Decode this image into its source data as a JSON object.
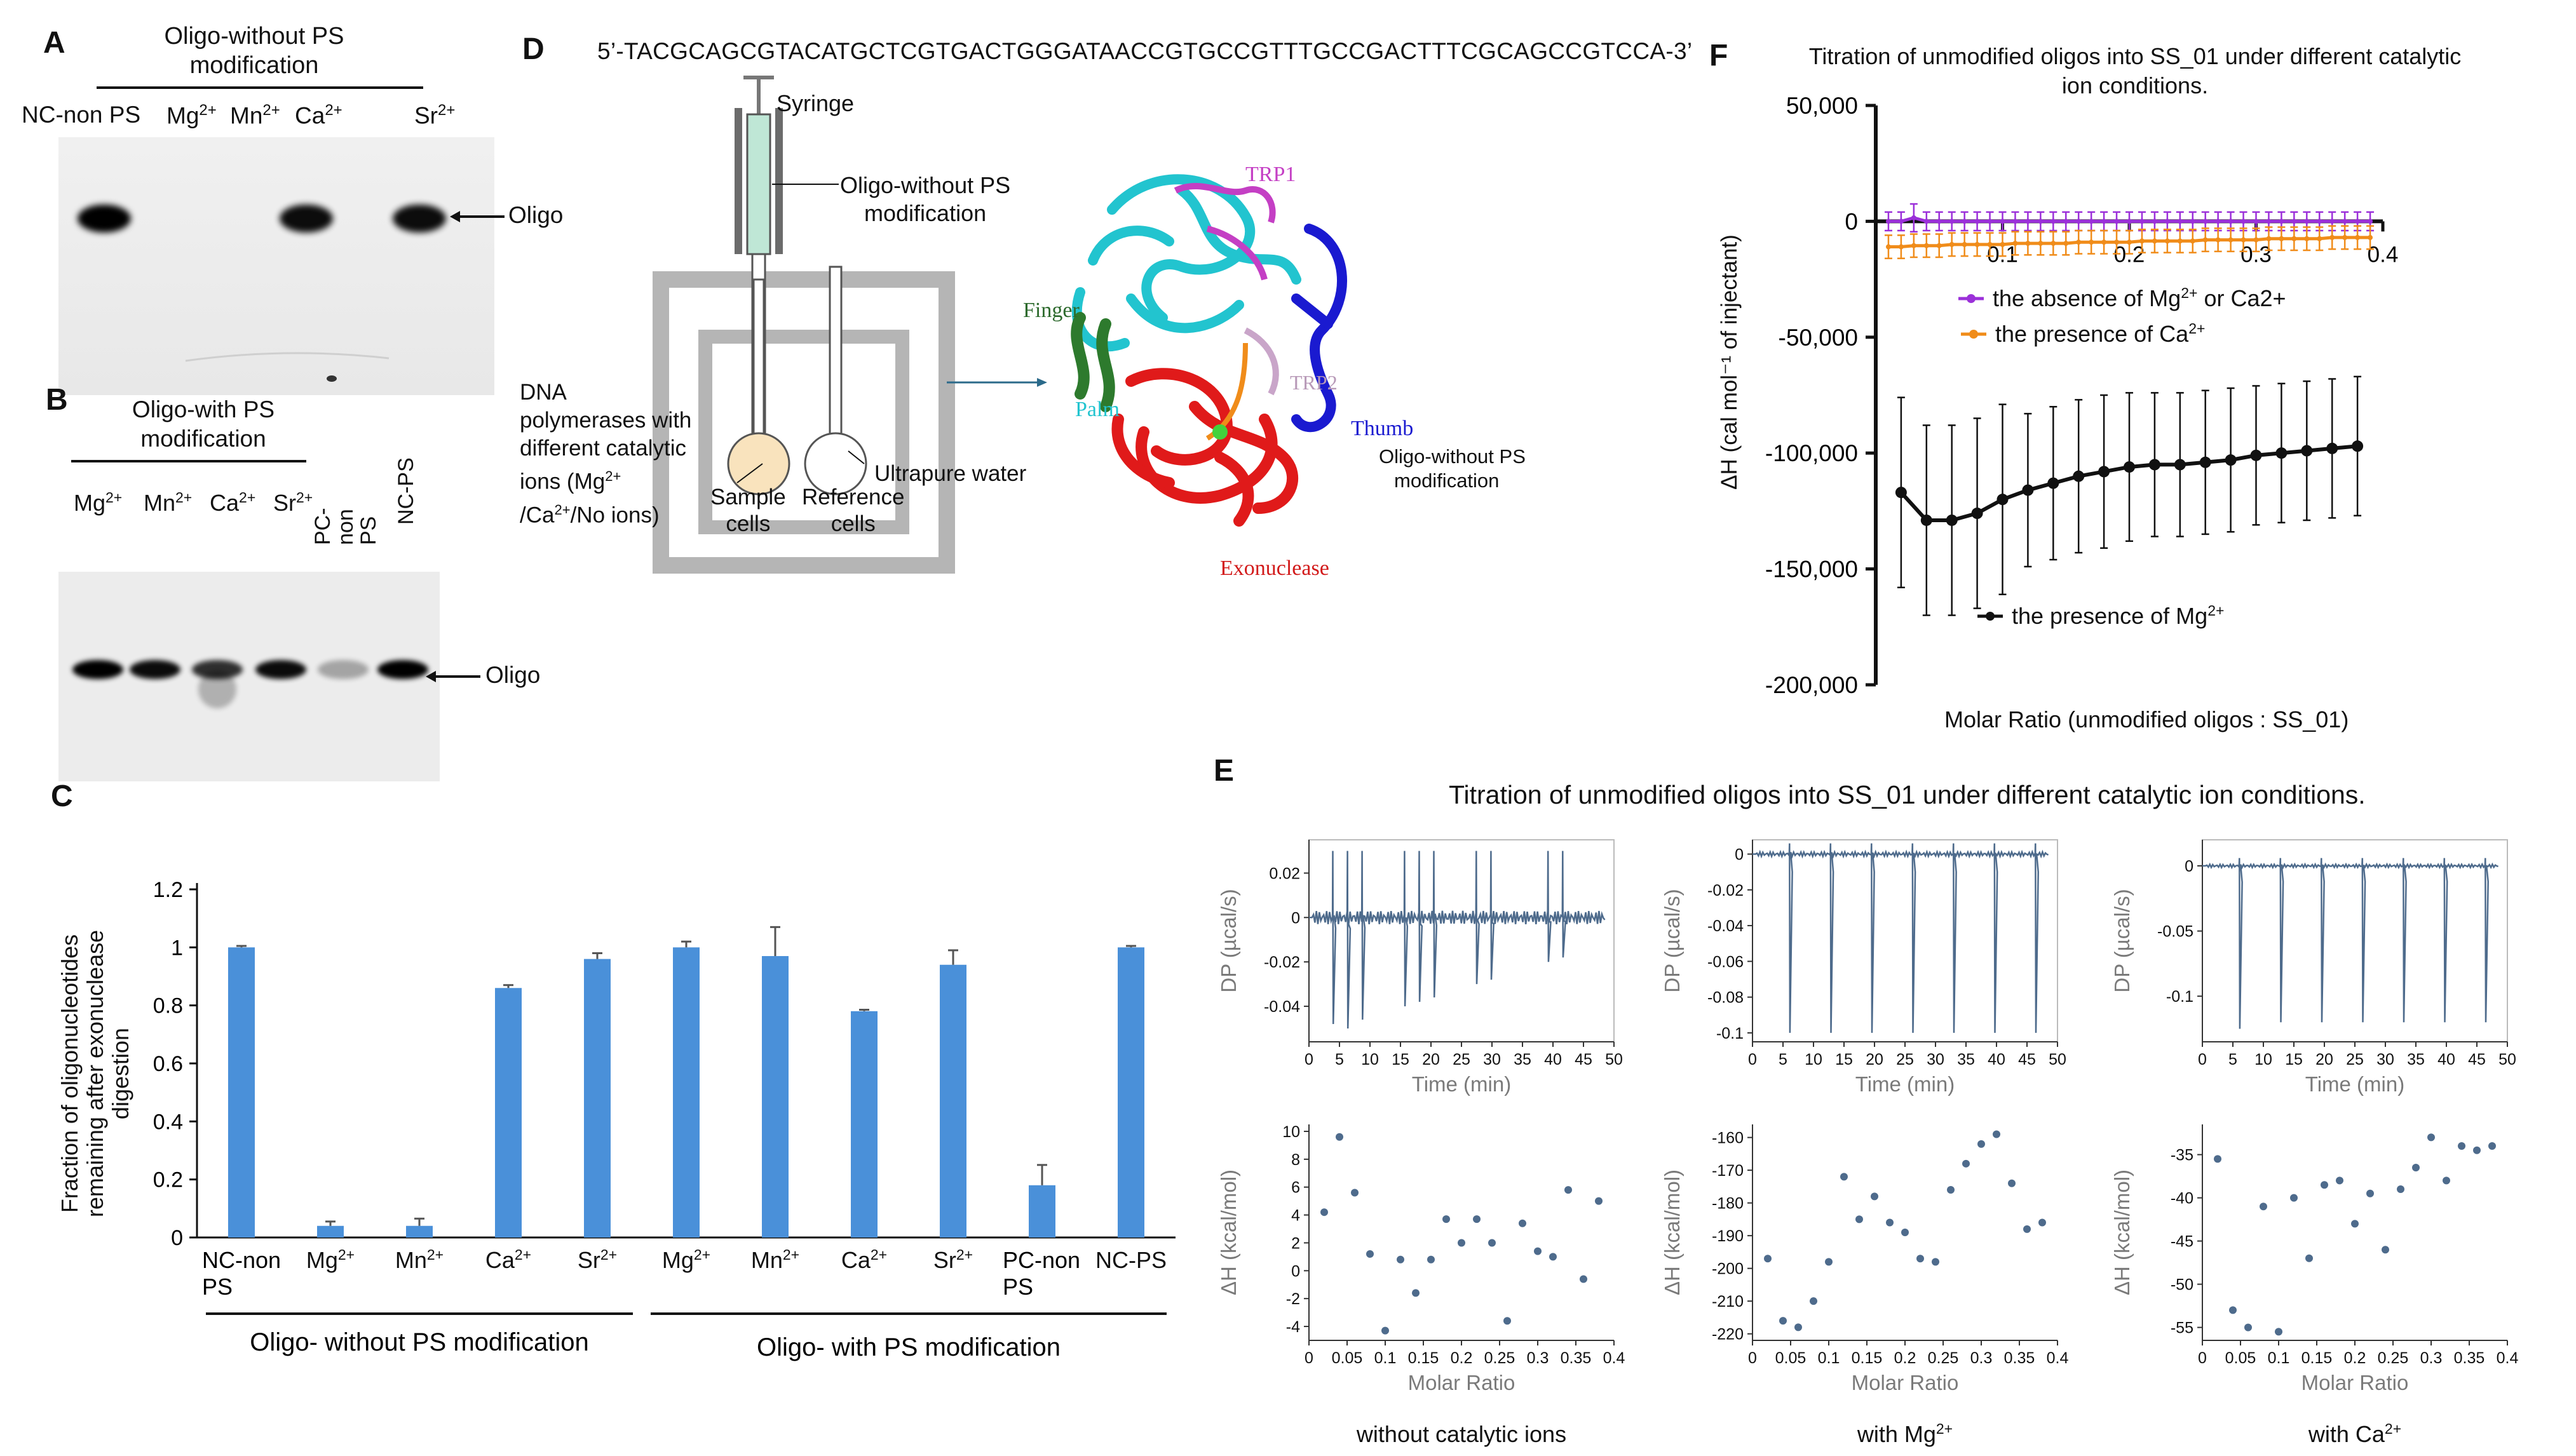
{
  "panelA": {
    "letter": "A",
    "group_title_line1": "Oligo-without PS",
    "group_title_line2": "modification",
    "lanes": [
      "NC-non PS",
      "Mg2+",
      "Mn2+",
      "Ca2+",
      "Sr2+"
    ],
    "arrow_label": "Oligo",
    "band_intensity": [
      1.0,
      0.0,
      0.0,
      0.95,
      0.95
    ]
  },
  "panelB": {
    "letter": "B",
    "group_title_line1": "Oligo-with PS",
    "group_title_line2": "modification",
    "lanes": [
      "Mg2+",
      "Mn2+",
      "Ca2+",
      "Sr2+",
      "PC-non PS",
      "NC-PS"
    ],
    "arrow_label": "Oligo",
    "band_intensity": [
      1.0,
      0.95,
      0.8,
      0.95,
      0.3,
      1.0
    ]
  },
  "panelC": {
    "letter": "C",
    "group_labels": [
      "Oligo- without PS modification",
      "Oligo- with PS modification"
    ],
    "chart_data": {
      "type": "bar",
      "categories": [
        "NC-non PS",
        "Mg2+",
        "Mn2+",
        "Ca2+",
        "Sr2+",
        "Mg2+",
        "Mn2+",
        "Ca2+",
        "Sr2+",
        "PC-non PS",
        "NC-PS"
      ],
      "values": [
        1.0,
        0.04,
        0.04,
        0.86,
        0.96,
        1.0,
        0.97,
        0.78,
        0.94,
        0.18,
        1.0
      ],
      "errors": [
        0.005,
        0.015,
        0.025,
        0.01,
        0.02,
        0.02,
        0.1,
        0.005,
        0.05,
        0.07,
        0.005
      ],
      "ylabel": "Fraction of oligonucleotides remaining after exonuclease digestion",
      "ylim": [
        0,
        1.2
      ],
      "yticks": [
        "0",
        "0.2",
        "0.4",
        "0.6",
        "0.8",
        "1",
        "1.2"
      ],
      "bar_color": "#4a90d9"
    }
  },
  "panelD": {
    "letter": "D",
    "sequence": "5’-TACGCAGCGTACATGCTCGTGACTGGGATAACCGTGCCGTTTGCCGACTTTCGCAGCCGTCCA-3’",
    "syringe": "Syringe",
    "syringe_content_line1": "Oligo-without PS",
    "syringe_content_line2": "modification",
    "sample_lines": [
      "DNA",
      "polymerases with",
      "different catalytic",
      "ions (Mg2+",
      "/Ca2+/No ions)"
    ],
    "sample_cells_line1": "Sample",
    "sample_cells_line2": "cells",
    "reference_cells_line1": "Reference",
    "reference_cells_line2": "cells",
    "ultrapure_water": "Ultrapure water",
    "domains": {
      "trp1": "TRP1",
      "trp2": "TRP2",
      "finger": "Finger",
      "palm": "Palm",
      "thumb": "Thumb",
      "exonuclease": "Exonuclease",
      "oligo_line1": "Oligo-without  PS",
      "oligo_line2": "modification"
    }
  },
  "panelE": {
    "letter": "E",
    "title": "Titration of unmodified oligos into SS_01 under different catalytic ion conditions.",
    "dp_axis_label": "DP (µcal/s)",
    "time_axis_label": "Time (min)",
    "dh_axis_label": "ΔH (kcal/mol)",
    "molar_axis_label": "Molar Ratio",
    "time_ticks": [
      "0",
      "5",
      "10",
      "15",
      "20",
      "25",
      "30",
      "35",
      "40",
      "45",
      "50"
    ],
    "molar_ticks": [
      "0",
      "0.05",
      "0.1",
      "0.15",
      "0.2",
      "0.25",
      "0.3",
      "0.35",
      "0.4"
    ],
    "subplots": [
      {
        "caption": "without catalytic ions",
        "dp_ticks": [
          "0.02",
          "0",
          "-0.02",
          "-0.04"
        ],
        "dp_range": [
          -0.056,
          0.035
        ],
        "dp_peak_depth": [
          0.055,
          0.048,
          0.05,
          0.046,
          0.044,
          0.042,
          0.04,
          0.038,
          0.036,
          0.034,
          0.032,
          0.03,
          0.028,
          0.026,
          0.024,
          0.022,
          0.02,
          0.018,
          0.016,
          0.014
        ],
        "dh_ticks": [
          "10",
          "8",
          "6",
          "4",
          "2",
          "0",
          "-2",
          "-4"
        ],
        "dh_range": [
          -5,
          10.5
        ],
        "chart_data": {
          "type": "scatter",
          "x": [
            0.02,
            0.04,
            0.06,
            0.08,
            0.1,
            0.12,
            0.14,
            0.16,
            0.18,
            0.2,
            0.22,
            0.24,
            0.26,
            0.28,
            0.3,
            0.32,
            0.34,
            0.36,
            0.38
          ],
          "y": [
            4.2,
            9.6,
            5.6,
            1.2,
            -4.3,
            0.8,
            -1.6,
            0.8,
            3.7,
            2.0,
            3.7,
            2.0,
            -3.6,
            3.4,
            1.4,
            1.0,
            5.8,
            -0.6,
            5.0
          ]
        }
      },
      {
        "caption": "with Mg2+",
        "dp_ticks": [
          "0",
          "-0.02",
          "-0.04",
          "-0.06",
          "-0.08",
          "-0.1"
        ],
        "dp_range": [
          -0.105,
          0.008
        ],
        "dp_peak_depth": [
          0.1,
          0.1,
          0.1,
          0.1,
          0.1,
          0.1,
          0.1,
          0.1,
          0.1,
          0.1,
          0.1,
          0.1,
          0.1,
          0.1,
          0.1,
          0.1,
          0.1,
          0.1,
          0.1,
          0.1,
          0.1
        ],
        "dh_ticks": [
          "-160",
          "-170",
          "-180",
          "-190",
          "-200",
          "-210",
          "-220"
        ],
        "dh_range": [
          -222,
          -156
        ],
        "chart_data": {
          "type": "scatter",
          "x": [
            0.02,
            0.04,
            0.06,
            0.08,
            0.1,
            0.12,
            0.14,
            0.16,
            0.18,
            0.2,
            0.22,
            0.24,
            0.26,
            0.28,
            0.3,
            0.32,
            0.34,
            0.36,
            0.38
          ],
          "y": [
            -197,
            -216,
            -218,
            -210,
            -198,
            -172,
            -185,
            -178,
            -186,
            -189,
            -197,
            -198,
            -176,
            -168,
            -162,
            -159,
            -174,
            -188,
            -186
          ]
        }
      },
      {
        "caption": "with Ca2+",
        "dp_ticks": [
          "0",
          "-0.05",
          "-0.1"
        ],
        "dp_range": [
          -0.135,
          0.02
        ],
        "dp_peak_depth": [
          0.13,
          0.125,
          0.125,
          0.12,
          0.12,
          0.12,
          0.12,
          0.12,
          0.12,
          0.12,
          0.12,
          0.12,
          0.12,
          0.12,
          0.12,
          0.12,
          0.12,
          0.12,
          0.12,
          0.12,
          0.12
        ],
        "dh_ticks": [
          "-35",
          "-40",
          "-45",
          "-50",
          "-55"
        ],
        "dh_range": [
          -56.5,
          -31.5
        ],
        "chart_data": {
          "type": "scatter",
          "x": [
            0.02,
            0.04,
            0.06,
            0.08,
            0.1,
            0.12,
            0.14,
            0.16,
            0.18,
            0.2,
            0.22,
            0.24,
            0.26,
            0.28,
            0.3,
            0.32,
            0.34,
            0.36,
            0.38
          ],
          "y": [
            -35.5,
            -53,
            -55,
            -41,
            -55.5,
            -40,
            -47,
            -38.5,
            -38,
            -43,
            -39.5,
            -46,
            -39,
            -36.5,
            -33,
            -38,
            -34,
            -34.5,
            -34
          ]
        }
      }
    ]
  },
  "panelF": {
    "letter": "F",
    "title_line1": "Titration of unmodified oligos into SS_01 under different catalytic",
    "title_line2": "ion conditions.",
    "ylabel": "ΔH (cal mol⁻¹ of injectant)",
    "xlabel": "Molar Ratio (unmodified oligos : SS_01)",
    "yticks": [
      "50,000",
      "0",
      "-50,000",
      "-100,000",
      "-150,000",
      "-200,000"
    ],
    "xticks": [
      "0.1",
      "0.2",
      "0.3",
      "0.4"
    ],
    "chart_data": {
      "type": "line",
      "xlim": [
        0,
        0.4
      ],
      "ylim": [
        -200000,
        50000
      ],
      "series": [
        {
          "name": "the absence of Mg2+ or Ca2+",
          "color": "#9b30d9",
          "x": [
            0.01,
            0.02,
            0.03,
            0.04,
            0.05,
            0.06,
            0.07,
            0.08,
            0.09,
            0.1,
            0.11,
            0.12,
            0.13,
            0.14,
            0.15,
            0.16,
            0.17,
            0.18,
            0.19,
            0.2,
            0.21,
            0.22,
            0.23,
            0.24,
            0.25,
            0.26,
            0.27,
            0.28,
            0.29,
            0.3,
            0.31,
            0.32,
            0.33,
            0.34,
            0.35,
            0.36,
            0.37,
            0.38,
            0.39
          ],
          "y": [
            0,
            0,
            1500,
            0,
            0,
            0,
            0,
            0,
            0,
            0,
            0,
            0,
            0,
            0,
            0,
            0,
            0,
            0,
            0,
            0,
            0,
            0,
            0,
            0,
            0,
            0,
            0,
            0,
            0,
            0,
            0,
            0,
            0,
            0,
            0,
            0,
            0,
            0,
            0
          ],
          "errors": [
            4000,
            4000,
            6000,
            4000,
            4000,
            4000,
            4000,
            4000,
            4000,
            4000,
            4000,
            4000,
            4000,
            4000,
            4000,
            4000,
            4000,
            4000,
            4000,
            4000,
            4000,
            4000,
            4000,
            4000,
            4000,
            4000,
            4000,
            4000,
            4000,
            4000,
            4000,
            4000,
            4000,
            4000,
            4000,
            4000,
            4000,
            4000,
            4000
          ]
        },
        {
          "name": "the presence of Ca2+",
          "color": "#f08c1a",
          "x": [
            0.01,
            0.02,
            0.03,
            0.04,
            0.05,
            0.06,
            0.07,
            0.08,
            0.09,
            0.1,
            0.11,
            0.12,
            0.13,
            0.14,
            0.15,
            0.16,
            0.17,
            0.18,
            0.19,
            0.2,
            0.21,
            0.22,
            0.23,
            0.24,
            0.25,
            0.26,
            0.27,
            0.28,
            0.29,
            0.3,
            0.31,
            0.32,
            0.33,
            0.34,
            0.35,
            0.36,
            0.37,
            0.38,
            0.39
          ],
          "y": [
            -11000,
            -11000,
            -10500,
            -10500,
            -10500,
            -10000,
            -10000,
            -10000,
            -10000,
            -10000,
            -9500,
            -9500,
            -9500,
            -9500,
            -9500,
            -9000,
            -9000,
            -9000,
            -9000,
            -9000,
            -8500,
            -8500,
            -8500,
            -8500,
            -8500,
            -8000,
            -8000,
            -8000,
            -8000,
            -8000,
            -7500,
            -7500,
            -7500,
            -7500,
            -7500,
            -7000,
            -7000,
            -7000,
            -7000
          ],
          "errors": [
            5000,
            5000,
            5000,
            5000,
            5000,
            5000,
            5000,
            5000,
            5000,
            5000,
            5000,
            5000,
            5000,
            5000,
            5000,
            5000,
            5000,
            5000,
            5000,
            5000,
            5000,
            5000,
            5000,
            5000,
            5000,
            5000,
            5000,
            5000,
            5000,
            5000,
            5000,
            5000,
            5000,
            5000,
            5000,
            5000,
            5000,
            5000,
            5000
          ]
        },
        {
          "name": "the presence of Mg2+",
          "color": "#111111",
          "x": [
            0.02,
            0.04,
            0.06,
            0.08,
            0.1,
            0.12,
            0.14,
            0.16,
            0.18,
            0.2,
            0.22,
            0.24,
            0.26,
            0.28,
            0.3,
            0.32,
            0.34,
            0.36,
            0.38
          ],
          "y": [
            -117000,
            -129000,
            -129000,
            -126000,
            -120000,
            -116000,
            -113000,
            -110000,
            -108000,
            -106000,
            -105000,
            -105000,
            -104000,
            -103000,
            -101000,
            -100000,
            -99000,
            -98000,
            -97000
          ],
          "errors": [
            41000,
            41000,
            41000,
            41000,
            41000,
            33000,
            33000,
            33000,
            33000,
            32000,
            31000,
            31000,
            31000,
            31000,
            30000,
            30000,
            30000,
            30000,
            30000
          ]
        }
      ]
    }
  }
}
